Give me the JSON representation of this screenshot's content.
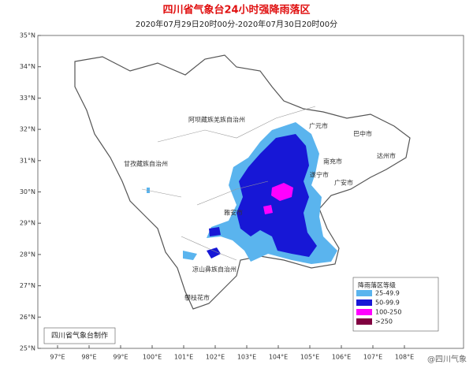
{
  "header": {
    "title": "四川省气象台24小时强降雨落区",
    "subtitle": "2020年07月29日20时00分-2020年07月30日20时00分"
  },
  "axes": {
    "latitude_labels": [
      "35°N",
      "34°N",
      "33°N",
      "32°N",
      "31°N",
      "30°N",
      "29°N",
      "28°N",
      "27°N",
      "26°N",
      "25°N"
    ],
    "longitude_labels": [
      "97°E",
      "98°E",
      "99°E",
      "100°E",
      "101°E",
      "102°E",
      "103°E",
      "104°E",
      "105°E",
      "106°E",
      "107°E",
      "108°E"
    ]
  },
  "places": [
    {
      "label": "阿坝藏族羌族自治州"
    },
    {
      "label": "甘孜藏族自治州"
    },
    {
      "label": "广元市"
    },
    {
      "label": "巴中市"
    },
    {
      "label": "达州市"
    },
    {
      "label": "南充市"
    },
    {
      "label": "遂宁市"
    },
    {
      "label": "广安市"
    },
    {
      "label": "雅安市"
    },
    {
      "label": "凉山彝族自治州"
    },
    {
      "label": "攀枝花市"
    }
  ],
  "legend": {
    "title": "降雨落区等级",
    "items": [
      {
        "label": "25-49.9",
        "color": "#5ab4ee"
      },
      {
        "label": "50-99.9",
        "color": "#1717d6"
      },
      {
        "label": "100-250",
        "color": "#ff00ff"
      },
      {
        "label": ">250",
        "color": "#800040"
      }
    ]
  },
  "footer": "四川省气象台制作",
  "watermark": "@四川气象"
}
